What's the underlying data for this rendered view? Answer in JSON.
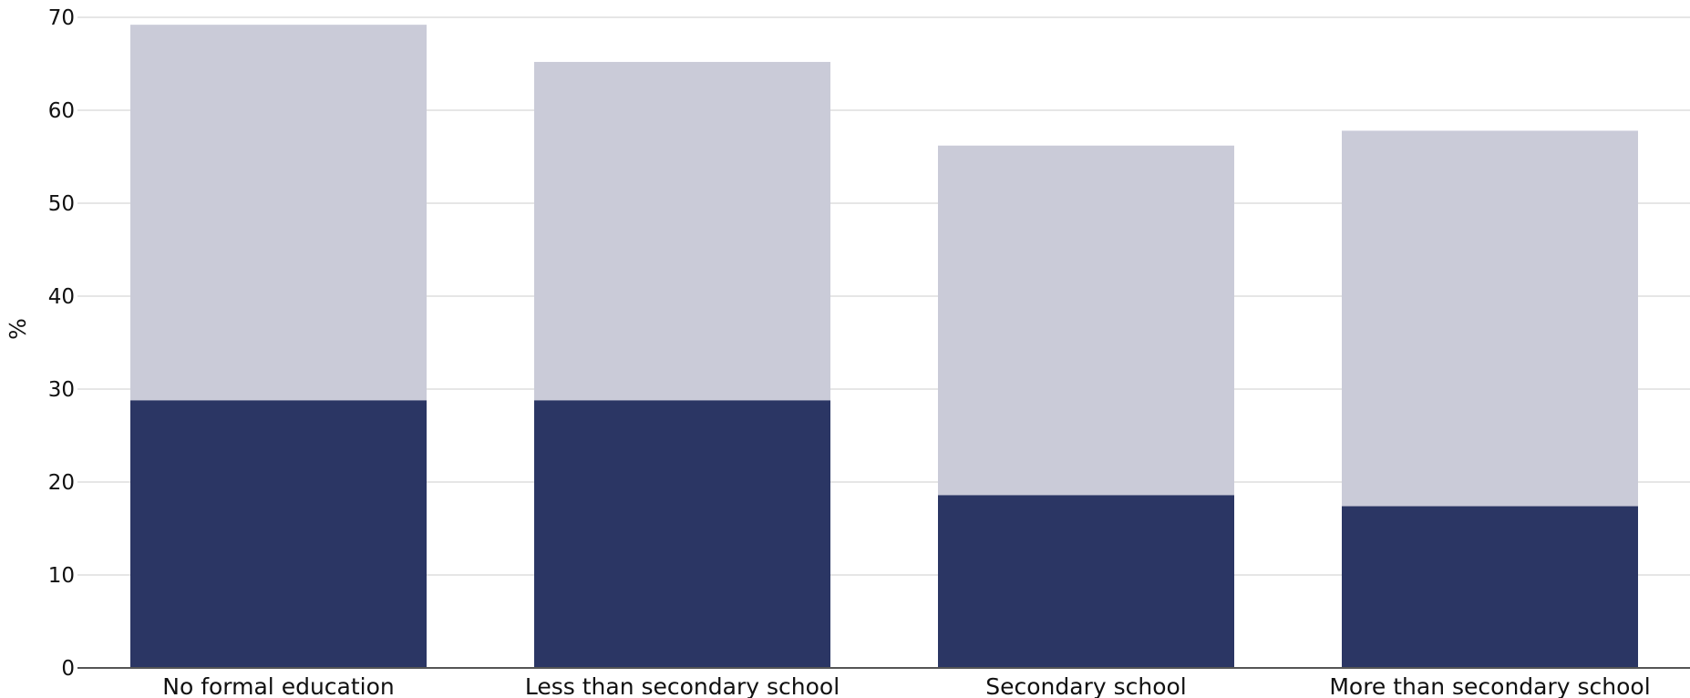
{
  "chart_data": {
    "type": "bar",
    "stacked": true,
    "title": "",
    "xlabel": "",
    "ylabel": "%",
    "ylim": [
      0,
      70
    ],
    "yticks": [
      0,
      10,
      20,
      30,
      40,
      50,
      60,
      70
    ],
    "grid": true,
    "legend": "none",
    "categories": [
      "No formal education",
      "Less than secondary school",
      "Secondary school",
      "More than secondary school"
    ],
    "series": [
      {
        "values": [
          28.8,
          28.8,
          18.6,
          17.4
        ],
        "color": "#2b3664"
      },
      {
        "values": [
          40.4,
          36.4,
          37.6,
          40.4
        ],
        "color": "#cacbd8"
      }
    ],
    "totals": [
      69.2,
      65.2,
      56.2,
      57.8
    ]
  },
  "colors": {
    "grid": "#e6e6e6",
    "axis": "#555555",
    "text": "#111111"
  }
}
